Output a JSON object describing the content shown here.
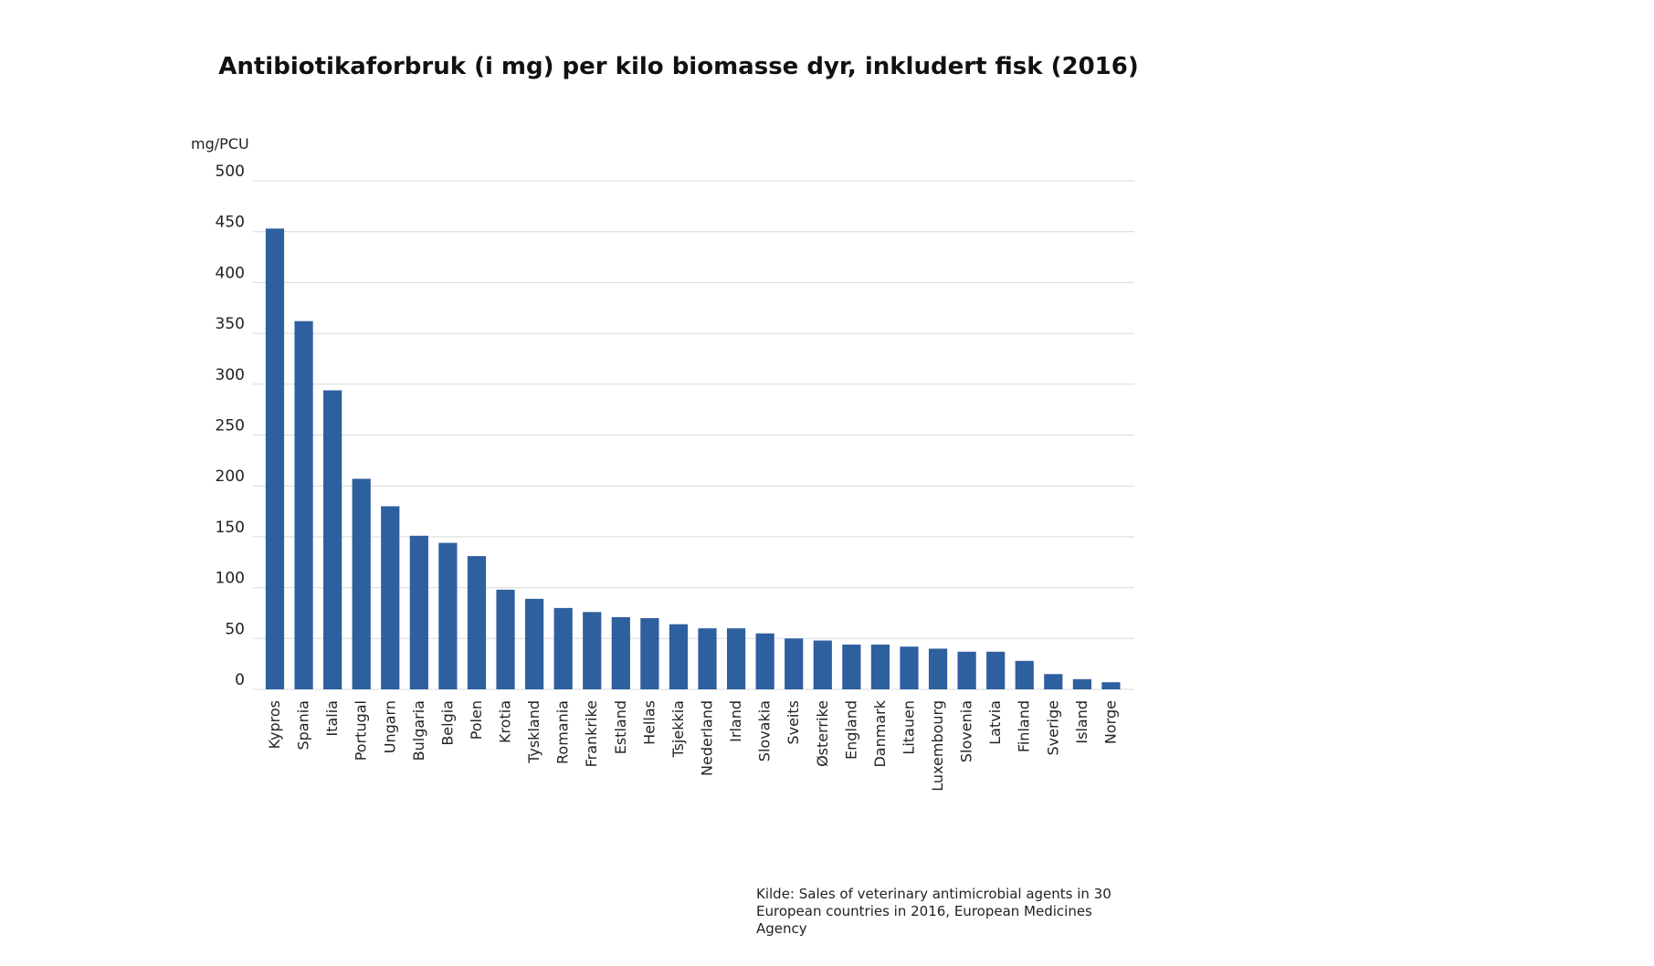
{
  "chart_data": {
    "type": "bar",
    "title": "Antibiotikaforbruk (i mg) per kilo biomasse dyr, inkludert fisk (2016)",
    "ylabel": "mg/PCU",
    "xlabel": "",
    "ylim": [
      0,
      500
    ],
    "yticks": [
      "0",
      "50",
      "100",
      "150",
      "200",
      "250",
      "300",
      "350",
      "400",
      "450",
      "500"
    ],
    "grid": true,
    "bar_color": "#2e5f9f",
    "categories": [
      "Kypros",
      "Spania",
      "Italia",
      "Portugal",
      "Ungarn",
      "Bulgaria",
      "Belgia",
      "Polen",
      "Krotia",
      "Tyskland",
      "Romania",
      "Frankrike",
      "Estland",
      "Hellas",
      "Tsjekkia",
      "Nederland",
      "Irland",
      "Slovakia",
      "Sveits",
      "Østerrike",
      "England",
      "Danmark",
      "Litauen",
      "Luxembourg",
      "Slovenia",
      "Latvia",
      "Finland",
      "Sverige",
      "Island",
      "Norge"
    ],
    "values": [
      453,
      362,
      294,
      207,
      180,
      151,
      144,
      131,
      98,
      89,
      80,
      76,
      71,
      70,
      64,
      60,
      60,
      55,
      50,
      48,
      44,
      44,
      42,
      40,
      37,
      37,
      28,
      15,
      10,
      7
    ]
  },
  "source": {
    "line1": "Kilde: Sales of veterinary antimicrobial agents in 30",
    "line2": "European countries in 2016, European Medicines Agency"
  }
}
